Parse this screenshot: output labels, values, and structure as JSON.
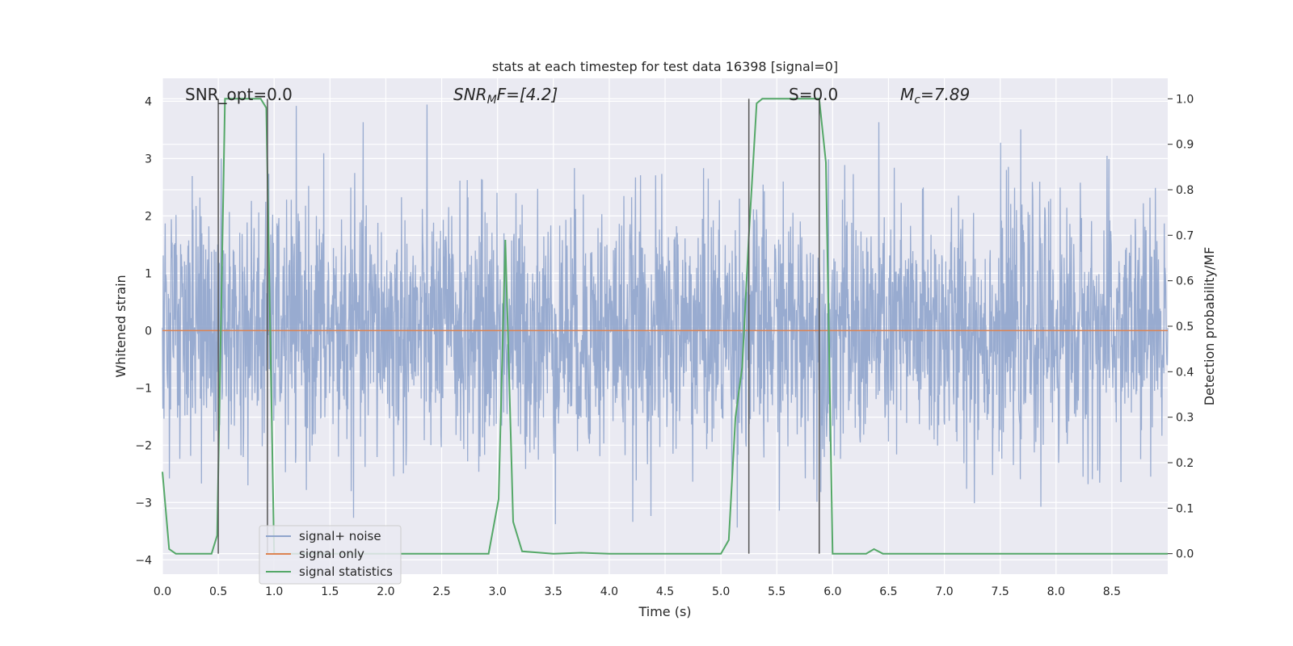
{
  "chart_data": {
    "type": "line",
    "title": "stats at each timestep for test data 16398 [signal=0]",
    "xlabel": "Time (s)",
    "ylabel_left": "Whitened strain",
    "ylabel_right": "Detection probability/MF",
    "xlim": [
      0.0,
      9.0
    ],
    "ylim_left": [
      -4.25,
      4.4
    ],
    "ylim_right": [
      -0.045,
      1.045
    ],
    "x_ticks": [
      "0.0",
      "0.5",
      "1.0",
      "1.5",
      "2.0",
      "2.5",
      "3.0",
      "3.5",
      "4.0",
      "4.5",
      "5.0",
      "5.5",
      "6.0",
      "6.5",
      "7.0",
      "7.5",
      "8.0",
      "8.5"
    ],
    "y_left_ticks": [
      "4",
      "3",
      "2",
      "1",
      "0",
      "−1",
      "−2",
      "−3",
      "−4"
    ],
    "y_right_ticks": [
      "1.0",
      "0.9",
      "0.8",
      "0.7",
      "0.6",
      "0.5",
      "0.4",
      "0.3",
      "0.2",
      "0.1",
      "0.0"
    ],
    "grid": true,
    "legend_position": "lower-left",
    "annotations": {
      "snr_opt": "SNR_opt=0.0",
      "snr_mf_prefix": "SNR",
      "snr_mf_sub": "M",
      "snr_mf_suffix": "F=[4.2]",
      "s_stat": "S=0.0",
      "mc_prefix": "M",
      "mc_sub": "c",
      "mc_suffix": "=7.89"
    },
    "series": [
      {
        "name": "signal+ noise",
        "color": "#8fa4cc",
        "axis": "left",
        "note_range": [
          -3.7,
          4.0
        ]
      },
      {
        "name": "signal only",
        "color": "#dd8452",
        "axis": "left",
        "x": [
          0.0,
          9.0
        ],
        "y": [
          0.0,
          0.0
        ]
      },
      {
        "name": "signal statistics",
        "color": "#55a868",
        "axis": "right",
        "x": [
          0.0,
          0.06,
          0.12,
          0.2,
          0.44,
          0.49,
          0.56,
          0.62,
          0.88,
          0.93,
          1.0,
          1.06,
          2.92,
          3.01,
          3.07,
          3.14,
          3.22,
          3.5,
          3.75,
          4.0,
          5.0,
          5.07,
          5.13,
          5.19,
          5.25,
          5.32,
          5.37,
          5.44,
          5.88,
          5.94,
          6.0,
          6.3,
          6.37,
          6.45,
          6.55,
          9.0
        ],
        "y": [
          0.18,
          0.01,
          0.0,
          0.0,
          0.0,
          0.04,
          1.0,
          1.0,
          1.0,
          0.98,
          0.0,
          0.0,
          0.0,
          0.12,
          0.69,
          0.07,
          0.005,
          0.0,
          0.002,
          0.0,
          0.0,
          0.03,
          0.3,
          0.41,
          0.7,
          0.99,
          1.0,
          1.0,
          1.0,
          0.86,
          0.0,
          0.0,
          0.01,
          0.0,
          0.0,
          0.0
        ]
      }
    ],
    "vertical_lines": {
      "color": "#555555",
      "x": [
        0.5,
        0.94,
        5.25,
        5.88
      ],
      "y_right": [
        0.0,
        1.0
      ]
    }
  }
}
